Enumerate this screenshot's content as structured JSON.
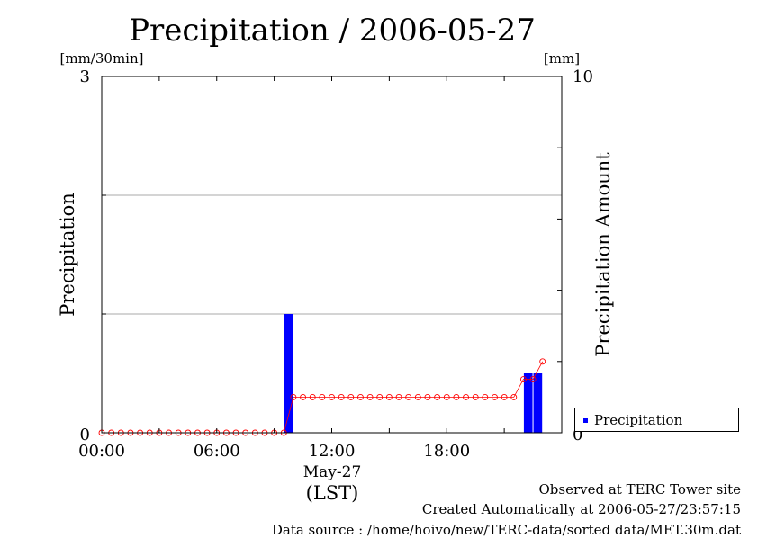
{
  "chart_data": {
    "type": "bar",
    "title": "Precipitation / 2006-05-27",
    "ylabel": "Precipitation",
    "y2label": "Precipitation Amount",
    "yunit": "[mm/30min]",
    "y2unit": "[mm]",
    "ylim": [
      0,
      3
    ],
    "y2lim": [
      0,
      10
    ],
    "xlim": [
      0,
      24
    ],
    "xticks": [
      {
        "value": 0,
        "label": "00:00"
      },
      {
        "value": 6,
        "label": "06:00"
      },
      {
        "value": 12,
        "label": "12:00"
      },
      {
        "value": 18,
        "label": "18:00"
      }
    ],
    "ytick_labels": [
      "0",
      "3"
    ],
    "y2tick_labels": [
      "0",
      "10"
    ],
    "date_label": "May-27",
    "tz_label": "(LST)",
    "grid": true,
    "series": [
      {
        "name": "Precipitation",
        "kind": "bar",
        "color": "#0000ff",
        "points": [
          {
            "x": 9.75,
            "y": 1.0
          },
          {
            "x": 22.25,
            "y": 0.5
          },
          {
            "x": 22.75,
            "y": 0.5
          }
        ]
      },
      {
        "kind": "cumulative-line",
        "color": "#ff0000",
        "axis": "right",
        "x": [
          0,
          0.5,
          1,
          1.5,
          2,
          2.5,
          3,
          3.5,
          4,
          4.5,
          5,
          5.5,
          6,
          6.5,
          7,
          7.5,
          8,
          8.5,
          9,
          9.5,
          10,
          10.5,
          11,
          11.5,
          12,
          12.5,
          13,
          13.5,
          14,
          14.5,
          15,
          15.5,
          16,
          16.5,
          17,
          17.5,
          18,
          18.5,
          19,
          19.5,
          20,
          20.5,
          21,
          21.5,
          22,
          22.5,
          23
        ],
        "y": [
          0,
          0,
          0,
          0,
          0,
          0,
          0,
          0,
          0,
          0,
          0,
          0,
          0,
          0,
          0,
          0,
          0,
          0,
          0,
          0,
          1,
          1,
          1,
          1,
          1,
          1,
          1,
          1,
          1,
          1,
          1,
          1,
          1,
          1,
          1,
          1,
          1,
          1,
          1,
          1,
          1,
          1,
          1,
          1,
          1.5,
          1.5,
          2
        ]
      }
    ],
    "legend": {
      "position": "right-bottom",
      "entries": [
        "Precipitation"
      ]
    }
  },
  "footer": {
    "line1": "Observed at TERC Tower site",
    "line2": "Created Automatically at 2006-05-27/23:57:15",
    "line3": "Data source : /home/hoivo/new/TERC-data/sorted  data/MET.30m.dat"
  }
}
